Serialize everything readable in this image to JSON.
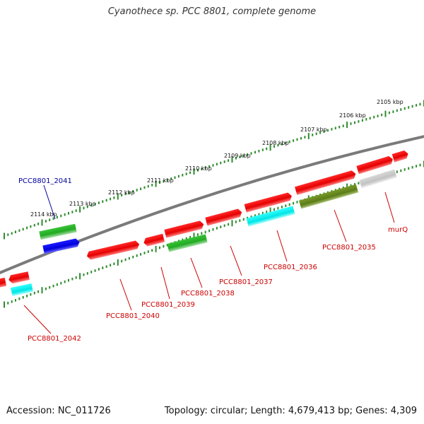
{
  "title": "Cyanothece sp. PCC 8801, complete genome",
  "footer": {
    "accession": "Accession: NC_011726",
    "summary": "Topology: circular; Length: 4,679,413 bp; Genes: 4,309"
  },
  "colors": {
    "backbone": "#808080",
    "ticks": "#2e8b2e",
    "label_red": "#cc0000",
    "label_blue": "#00009c"
  },
  "kbp_labels": [
    "2105 kbp",
    "2106 kbp",
    "2107 kbp",
    "2108 kbp",
    "2109 kbp",
    "2110 kbp",
    "2111 kbp",
    "2112 kbp",
    "2113 kbp",
    "2114 kbp"
  ],
  "genes": [
    {
      "label": "murQ",
      "color": "#cc0000"
    },
    {
      "label": "PCC8801_2035",
      "color": "#cc0000"
    },
    {
      "label": "PCC8801_2036",
      "color": "#cc0000"
    },
    {
      "label": "PCC8801_2037",
      "color": "#cc0000"
    },
    {
      "label": "PCC8801_2038",
      "color": "#cc0000"
    },
    {
      "label": "PCC8801_2039",
      "color": "#cc0000"
    },
    {
      "label": "PCC8801_2040",
      "color": "#cc0000"
    },
    {
      "label": "PCC8801_2041",
      "color": "#00009c"
    },
    {
      "label": "PCC8801_2042",
      "color": "#cc0000"
    }
  ]
}
